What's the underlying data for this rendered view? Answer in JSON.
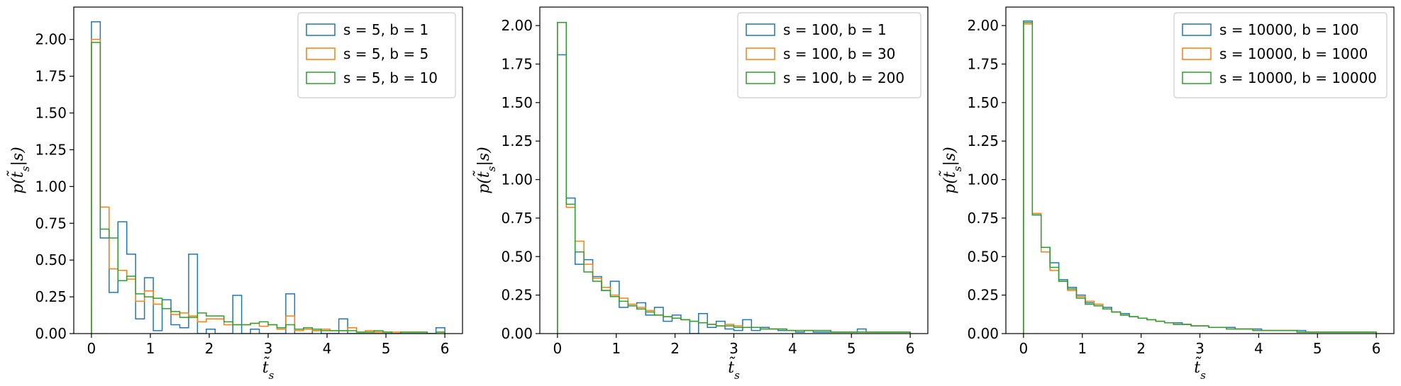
{
  "chart_data": [
    {
      "type": "step-histogram",
      "xlabel": "t̃_s",
      "ylabel": "p(t̃_s|s)",
      "xlim": [
        -0.3,
        6.3
      ],
      "ylim": [
        0,
        2.22
      ],
      "xticks": [
        0,
        1,
        2,
        3,
        4,
        5,
        6
      ],
      "yticks": [
        0.0,
        0.25,
        0.5,
        0.75,
        1.0,
        1.25,
        1.5,
        1.75,
        2.0
      ],
      "bin_width": 0.15,
      "legend_position": "upper-right",
      "series": [
        {
          "name": "s = 5, b = 1",
          "color": "#1f77b4",
          "values": [
            2.12,
            0.65,
            0.28,
            0.76,
            0.54,
            0.1,
            0.38,
            0.02,
            0.23,
            0.06,
            0.04,
            0.54,
            0.0,
            0.03,
            0.0,
            0.0,
            0.26,
            0.0,
            0.03,
            0.0,
            0.0,
            0.0,
            0.27,
            0.0,
            0.0,
            0.02,
            0.0,
            0.0,
            0.1,
            0.0,
            0.0,
            0.0,
            0.0,
            0.0,
            0.0,
            0.0,
            0.0,
            0.0,
            0.0,
            0.04
          ]
        },
        {
          "name": "s = 5, b = 5",
          "color": "#ff7f0e",
          "values": [
            2.0,
            0.86,
            0.44,
            0.43,
            0.37,
            0.22,
            0.29,
            0.2,
            0.17,
            0.13,
            0.14,
            0.12,
            0.08,
            0.1,
            0.1,
            0.06,
            0.06,
            0.06,
            0.07,
            0.05,
            0.06,
            0.03,
            0.12,
            0.02,
            0.03,
            0.02,
            0.03,
            0.02,
            0.02,
            0.04,
            0.01,
            0.02,
            0.01,
            0.01,
            0.01,
            0.01,
            0.01,
            0.01,
            0.0,
            0.01
          ]
        },
        {
          "name": "s = 5, b = 10",
          "color": "#2ca02c",
          "values": [
            1.98,
            0.71,
            0.65,
            0.36,
            0.39,
            0.27,
            0.25,
            0.24,
            0.17,
            0.15,
            0.11,
            0.11,
            0.14,
            0.12,
            0.12,
            0.08,
            0.06,
            0.06,
            0.07,
            0.08,
            0.06,
            0.04,
            0.06,
            0.03,
            0.04,
            0.03,
            0.02,
            0.02,
            0.02,
            0.02,
            0.01,
            0.01,
            0.02,
            0.01,
            0.0,
            0.01,
            0.01,
            0.01,
            0.0,
            0.01
          ]
        }
      ]
    },
    {
      "type": "step-histogram",
      "xlabel": "t̃_s",
      "ylabel": "p(t̃_s|s)",
      "xlim": [
        -0.3,
        6.3
      ],
      "ylim": [
        0,
        2.12
      ],
      "xticks": [
        0,
        1,
        2,
        3,
        4,
        5,
        6
      ],
      "yticks": [
        0.0,
        0.25,
        0.5,
        0.75,
        1.0,
        1.25,
        1.5,
        1.75,
        2.0
      ],
      "bin_width": 0.15,
      "legend_position": "upper-right",
      "series": [
        {
          "name": "s = 100, b = 1",
          "color": "#1f77b4",
          "values": [
            1.81,
            0.88,
            0.45,
            0.48,
            0.37,
            0.28,
            0.34,
            0.17,
            0.19,
            0.2,
            0.12,
            0.17,
            0.08,
            0.12,
            0.09,
            0.0,
            0.13,
            0.04,
            0.08,
            0.03,
            0.02,
            0.09,
            0.02,
            0.04,
            0.03,
            0.02,
            0.02,
            0.01,
            0.02,
            0.01,
            0.01,
            0.01,
            0.01,
            0.01,
            0.03,
            0.01,
            0.01,
            0.01,
            0.01,
            0.01
          ]
        },
        {
          "name": "s = 100, b = 30",
          "color": "#ff7f0e",
          "values": [
            2.02,
            0.82,
            0.6,
            0.45,
            0.36,
            0.3,
            0.25,
            0.23,
            0.19,
            0.17,
            0.15,
            0.12,
            0.11,
            0.1,
            0.09,
            0.08,
            0.07,
            0.06,
            0.05,
            0.06,
            0.05,
            0.04,
            0.04,
            0.03,
            0.03,
            0.03,
            0.02,
            0.02,
            0.02,
            0.02,
            0.02,
            0.01,
            0.01,
            0.01,
            0.01,
            0.01,
            0.01,
            0.01,
            0.01,
            0.01
          ]
        },
        {
          "name": "s = 100, b = 200",
          "color": "#2ca02c",
          "values": [
            2.02,
            0.84,
            0.53,
            0.4,
            0.34,
            0.28,
            0.24,
            0.21,
            0.18,
            0.16,
            0.14,
            0.12,
            0.11,
            0.1,
            0.09,
            0.08,
            0.07,
            0.06,
            0.05,
            0.05,
            0.04,
            0.04,
            0.04,
            0.03,
            0.03,
            0.03,
            0.02,
            0.02,
            0.02,
            0.02,
            0.02,
            0.01,
            0.01,
            0.01,
            0.01,
            0.01,
            0.01,
            0.01,
            0.01,
            0.01
          ]
        }
      ]
    },
    {
      "type": "step-histogram",
      "xlabel": "t̃_s",
      "ylabel": "p(t̃_s|s)",
      "xlim": [
        -0.3,
        6.3
      ],
      "ylim": [
        0,
        2.12
      ],
      "xticks": [
        0,
        1,
        2,
        3,
        4,
        5,
        6
      ],
      "yticks": [
        0.0,
        0.25,
        0.5,
        0.75,
        1.0,
        1.25,
        1.5,
        1.75,
        2.0
      ],
      "bin_width": 0.15,
      "legend_position": "upper-right",
      "series": [
        {
          "name": "s = 10000, b = 100",
          "color": "#1f77b4",
          "values": [
            2.03,
            0.77,
            0.56,
            0.46,
            0.35,
            0.3,
            0.25,
            0.2,
            0.19,
            0.17,
            0.14,
            0.13,
            0.11,
            0.1,
            0.09,
            0.08,
            0.07,
            0.07,
            0.06,
            0.05,
            0.05,
            0.04,
            0.04,
            0.04,
            0.03,
            0.03,
            0.03,
            0.02,
            0.02,
            0.02,
            0.02,
            0.02,
            0.01,
            0.01,
            0.01,
            0.01,
            0.01,
            0.01,
            0.01,
            0.01
          ]
        },
        {
          "name": "s = 10000, b = 1000",
          "color": "#ff7f0e",
          "values": [
            2.01,
            0.78,
            0.53,
            0.41,
            0.34,
            0.28,
            0.24,
            0.21,
            0.19,
            0.16,
            0.14,
            0.12,
            0.11,
            0.1,
            0.09,
            0.08,
            0.07,
            0.06,
            0.06,
            0.05,
            0.05,
            0.04,
            0.04,
            0.03,
            0.03,
            0.03,
            0.02,
            0.02,
            0.02,
            0.02,
            0.02,
            0.01,
            0.01,
            0.01,
            0.01,
            0.01,
            0.01,
            0.01,
            0.01,
            0.01
          ]
        },
        {
          "name": "s = 10000, b = 10000",
          "color": "#2ca02c",
          "values": [
            2.02,
            0.77,
            0.56,
            0.43,
            0.34,
            0.29,
            0.23,
            0.19,
            0.18,
            0.16,
            0.14,
            0.12,
            0.11,
            0.1,
            0.09,
            0.08,
            0.07,
            0.06,
            0.06,
            0.05,
            0.05,
            0.04,
            0.04,
            0.03,
            0.03,
            0.03,
            0.02,
            0.02,
            0.02,
            0.02,
            0.02,
            0.01,
            0.01,
            0.01,
            0.01,
            0.01,
            0.01,
            0.01,
            0.01,
            0.01
          ]
        }
      ]
    }
  ]
}
